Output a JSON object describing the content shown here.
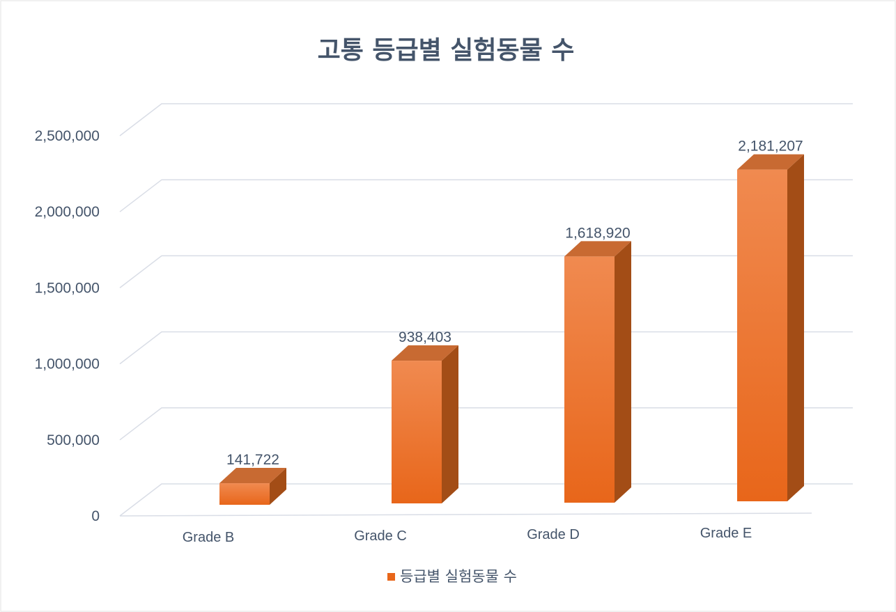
{
  "chart_data": {
    "type": "bar",
    "title": "고통 등급별 실험동물 수",
    "categories": [
      "Grade B",
      "Grade C",
      "Grade D",
      "Grade E"
    ],
    "series": [
      {
        "name": "등급별 실험동물 수",
        "values": [
          141722,
          938403,
          1618920,
          2181207
        ],
        "labels": [
          "141,722",
          "938,403",
          "1,618,920",
          "2,181,207"
        ]
      }
    ],
    "ylim": [
      0,
      2500000
    ],
    "yticks": [
      0,
      500000,
      1000000,
      1500000,
      2000000,
      2500000
    ],
    "ytick_labels": [
      "0",
      "500,000",
      "1,000,000",
      "1,500,000",
      "2,000,000",
      "2,500,000"
    ],
    "grid": true,
    "style": "3d-column",
    "legend": "bottom",
    "colors": {
      "bar_front_top": "#f08a50",
      "bar_front_bottom": "#e8661a",
      "bar_side": "#a34d16",
      "bar_top": "#c86a32",
      "grid": "#d9dde6",
      "text": "#44546a"
    }
  }
}
